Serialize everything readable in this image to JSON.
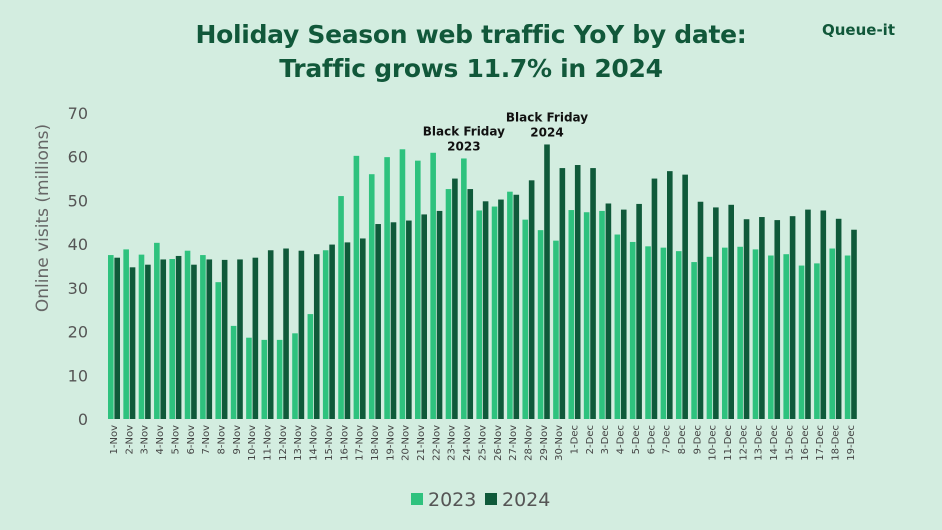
{
  "header": {
    "title_line1": "Holiday Season web traffic  YoY  by date:",
    "title_line2": "Traffic grows 11.7% in 2024",
    "brand": "Queue-it"
  },
  "colors": {
    "background": "#d3ede0",
    "series_2023": "#2ec27e",
    "series_2024": "#0f5a3a",
    "title": "#11583a"
  },
  "chart_data": {
    "type": "bar",
    "title": "Holiday Season web traffic YoY by date: Traffic grows 11.7% in 2024",
    "xlabel": "",
    "ylabel": "Online visits (millions)",
    "ylim": [
      0,
      70
    ],
    "yticks": [
      "0",
      "10",
      "20",
      "30",
      "40",
      "50",
      "60",
      "70"
    ],
    "grid": false,
    "legend": "bottom-center",
    "categories": [
      "1-Nov",
      "2-Nov",
      "3-Nov",
      "4-Nov",
      "5-Nov",
      "6-Nov",
      "7-Nov",
      "8-Nov",
      "9-Nov",
      "10-Nov",
      "11-Nov",
      "12-Nov",
      "13-Nov",
      "14-Nov",
      "15-Nov",
      "16-Nov",
      "17-Nov",
      "18-Nov",
      "19-Nov",
      "20-Nov",
      "21-Nov",
      "22-Nov",
      "23-Nov",
      "24-Nov",
      "25-Nov",
      "26-Nov",
      "27-Nov",
      "28-Nov",
      "29-Nov",
      "30-Nov",
      "1-Dec",
      "2-Dec",
      "3-Dec",
      "4-Dec",
      "5-Dec",
      "6-Dec",
      "7-Dec",
      "8-Dec",
      "9-Dec",
      "10-Dec",
      "11-Dec",
      "12-Dec",
      "13-Dec",
      "14-Dec",
      "15-Dec",
      "16-Dec",
      "17-Dec",
      "18-Dec",
      "19-Dec"
    ],
    "series": [
      {
        "name": "2023",
        "values": [
          37.5,
          38.8,
          37.6,
          40.3,
          36.6,
          38.5,
          37.5,
          31.3,
          21.3,
          18.6,
          18.1,
          18.1,
          19.6,
          24.0,
          38.6,
          51.0,
          60.2,
          56.0,
          59.9,
          61.7,
          59.1,
          60.9,
          52.6,
          59.6,
          47.7,
          48.6,
          52.0,
          45.6,
          43.2,
          40.8,
          47.8,
          47.3,
          47.6,
          42.2,
          40.5,
          39.5,
          39.2,
          38.4,
          35.9,
          37.1,
          39.2,
          39.4,
          38.8,
          37.4,
          37.7,
          35.1,
          35.6,
          39.0,
          37.4
        ]
      },
      {
        "name": "2024",
        "values": [
          36.9,
          34.7,
          35.3,
          36.5,
          37.3,
          35.3,
          36.5,
          36.4,
          36.5,
          36.9,
          38.6,
          39.0,
          38.5,
          37.7,
          39.9,
          40.4,
          41.3,
          44.6,
          45.0,
          45.4,
          46.8,
          47.6,
          55.0,
          52.6,
          49.8,
          50.2,
          51.3,
          54.6,
          62.8,
          57.4,
          58.1,
          57.4,
          49.3,
          47.9,
          49.2,
          55.0,
          56.7,
          55.9,
          49.7,
          48.4,
          49.0,
          45.7,
          46.2,
          45.5,
          46.4,
          47.9,
          47.7,
          45.8,
          43.3
        ]
      }
    ],
    "annotations": [
      {
        "text_line1": "Black Friday",
        "text_line2": "2023",
        "category": "24-Nov",
        "series": "2023"
      },
      {
        "text_line1": "Black Friday",
        "text_line2": "2024",
        "category": "29-Nov",
        "series": "2024"
      }
    ]
  }
}
